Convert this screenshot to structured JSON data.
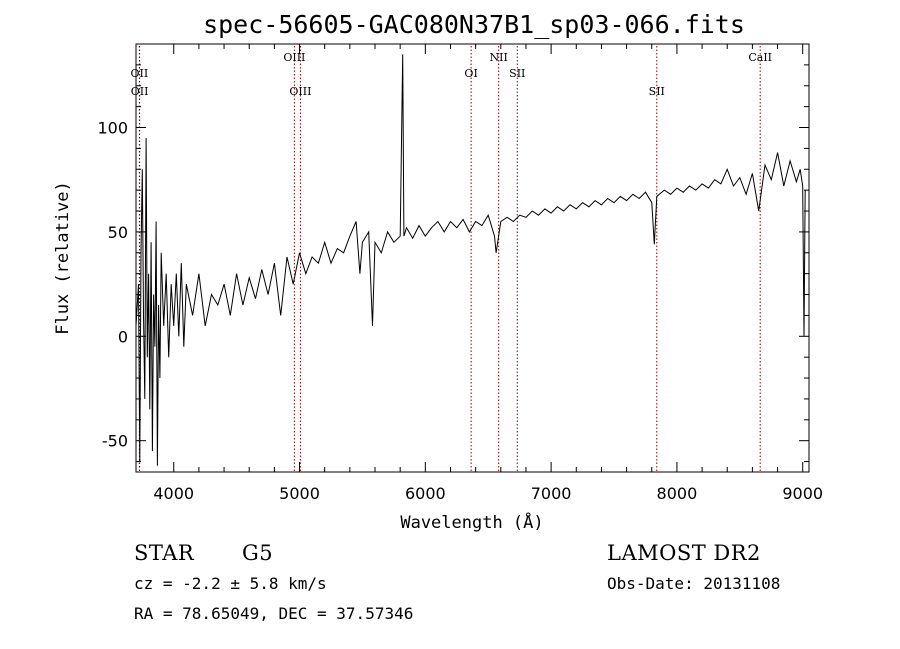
{
  "title": "spec-56605-GAC080N37B1_sp03-066.fits",
  "info": {
    "object_class": "STAR",
    "subclass": "G5",
    "survey": "LAMOST DR2",
    "cz": "cz = -2.2 ± 5.8 km/s",
    "obs_date": "Obs-Date: 20131108",
    "coords": "RA =  78.65049, DEC =  37.57346"
  },
  "chart_data": {
    "type": "line",
    "title": "spec-56605-GAC080N37B1_sp03-066.fits",
    "xlabel": "Wavelength (Å)",
    "ylabel": "Flux (relative)",
    "xlim": [
      3700,
      9050
    ],
    "ylim": [
      -65,
      140
    ],
    "xticks": [
      4000,
      5000,
      6000,
      7000,
      8000,
      9000
    ],
    "yticks": [
      -50,
      0,
      50,
      100
    ],
    "grid": false,
    "series": [
      {
        "points": [
          [
            3700,
            5
          ],
          [
            3720,
            25
          ],
          [
            3730,
            -60
          ],
          [
            3740,
            40
          ],
          [
            3750,
            80
          ],
          [
            3760,
            10
          ],
          [
            3770,
            -30
          ],
          [
            3780,
            95
          ],
          [
            3790,
            -10
          ],
          [
            3800,
            30
          ],
          [
            3810,
            -35
          ],
          [
            3820,
            45
          ],
          [
            3830,
            -55
          ],
          [
            3840,
            20
          ],
          [
            3850,
            -5
          ],
          [
            3860,
            55
          ],
          [
            3870,
            -62
          ],
          [
            3880,
            15
          ],
          [
            3890,
            -20
          ],
          [
            3900,
            40
          ],
          [
            3920,
            5
          ],
          [
            3940,
            30
          ],
          [
            3960,
            -10
          ],
          [
            3980,
            25
          ],
          [
            4000,
            5
          ],
          [
            4020,
            30
          ],
          [
            4040,
            0
          ],
          [
            4060,
            35
          ],
          [
            4080,
            -5
          ],
          [
            4100,
            25
          ],
          [
            4150,
            10
          ],
          [
            4200,
            30
          ],
          [
            4250,
            5
          ],
          [
            4300,
            20
          ],
          [
            4350,
            15
          ],
          [
            4400,
            25
          ],
          [
            4450,
            10
          ],
          [
            4500,
            30
          ],
          [
            4550,
            15
          ],
          [
            4600,
            28
          ],
          [
            4650,
            18
          ],
          [
            4700,
            32
          ],
          [
            4750,
            20
          ],
          [
            4800,
            35
          ],
          [
            4850,
            10
          ],
          [
            4900,
            38
          ],
          [
            4950,
            25
          ],
          [
            5000,
            40
          ],
          [
            5050,
            30
          ],
          [
            5100,
            38
          ],
          [
            5150,
            35
          ],
          [
            5200,
            45
          ],
          [
            5250,
            35
          ],
          [
            5300,
            42
          ],
          [
            5350,
            40
          ],
          [
            5400,
            48
          ],
          [
            5450,
            55
          ],
          [
            5480,
            30
          ],
          [
            5500,
            45
          ],
          [
            5550,
            50
          ],
          [
            5580,
            5
          ],
          [
            5600,
            45
          ],
          [
            5650,
            40
          ],
          [
            5700,
            50
          ],
          [
            5750,
            45
          ],
          [
            5800,
            48
          ],
          [
            5820,
            135
          ],
          [
            5830,
            48
          ],
          [
            5850,
            52
          ],
          [
            5900,
            47
          ],
          [
            5950,
            53
          ],
          [
            6000,
            48
          ],
          [
            6050,
            52
          ],
          [
            6100,
            55
          ],
          [
            6150,
            50
          ],
          [
            6200,
            55
          ],
          [
            6250,
            52
          ],
          [
            6300,
            56
          ],
          [
            6350,
            50
          ],
          [
            6400,
            55
          ],
          [
            6450,
            53
          ],
          [
            6500,
            58
          ],
          [
            6550,
            48
          ],
          [
            6563,
            40
          ],
          [
            6600,
            55
          ],
          [
            6650,
            57
          ],
          [
            6700,
            55
          ],
          [
            6750,
            58
          ],
          [
            6800,
            57
          ],
          [
            6850,
            60
          ],
          [
            6900,
            58
          ],
          [
            6950,
            61
          ],
          [
            7000,
            59
          ],
          [
            7050,
            62
          ],
          [
            7100,
            60
          ],
          [
            7150,
            63
          ],
          [
            7200,
            61
          ],
          [
            7250,
            64
          ],
          [
            7300,
            62
          ],
          [
            7350,
            65
          ],
          [
            7400,
            63
          ],
          [
            7450,
            66
          ],
          [
            7500,
            64
          ],
          [
            7550,
            67
          ],
          [
            7600,
            65
          ],
          [
            7650,
            68
          ],
          [
            7700,
            66
          ],
          [
            7750,
            69
          ],
          [
            7800,
            64
          ],
          [
            7820,
            44
          ],
          [
            7840,
            67
          ],
          [
            7900,
            70
          ],
          [
            7950,
            68
          ],
          [
            8000,
            71
          ],
          [
            8050,
            69
          ],
          [
            8100,
            72
          ],
          [
            8150,
            70
          ],
          [
            8200,
            73
          ],
          [
            8250,
            71
          ],
          [
            8300,
            75
          ],
          [
            8350,
            73
          ],
          [
            8400,
            80
          ],
          [
            8450,
            72
          ],
          [
            8500,
            76
          ],
          [
            8550,
            68
          ],
          [
            8600,
            78
          ],
          [
            8650,
            60
          ],
          [
            8700,
            82
          ],
          [
            8750,
            75
          ],
          [
            8800,
            88
          ],
          [
            8850,
            72
          ],
          [
            8900,
            84
          ],
          [
            8950,
            74
          ],
          [
            8980,
            80
          ],
          [
            9000,
            72
          ],
          [
            9010,
            0
          ],
          [
            9020,
            70
          ]
        ]
      }
    ],
    "lines": [
      {
        "label": "OII",
        "wavelength": 3727,
        "row": 1
      },
      {
        "label": "OII",
        "wavelength": 3729,
        "row": 2
      },
      {
        "label": "OIII",
        "wavelength": 4959,
        "row": 0
      },
      {
        "label": "OIII",
        "wavelength": 5007,
        "row": 2
      },
      {
        "label": "OI",
        "wavelength": 6364,
        "row": 1
      },
      {
        "label": "NII",
        "wavelength": 6583,
        "row": 0
      },
      {
        "label": "SII",
        "wavelength": 6731,
        "row": 1
      },
      {
        "label": "SII",
        "wavelength": 7840,
        "row": 2
      },
      {
        "label": "CaII",
        "wavelength": 8662,
        "row": 0
      }
    ],
    "marker_color": "#8b0000",
    "line_color": "#000000"
  }
}
